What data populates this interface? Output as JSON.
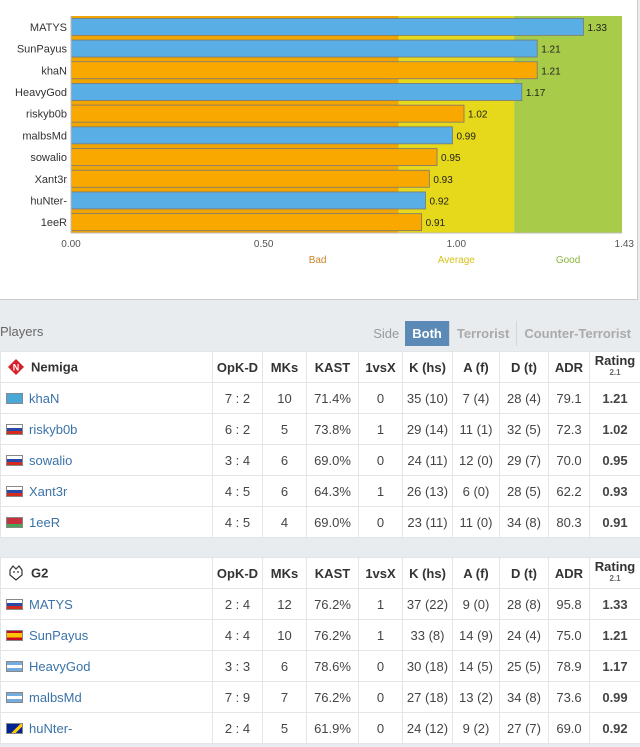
{
  "chart_data": {
    "type": "bar",
    "orientation": "horizontal",
    "categories": [
      "MATYS",
      "SunPayus",
      "khaN",
      "HeavyGod",
      "riskyb0b",
      "malbsMd",
      "sowalio",
      "Xant3r",
      "huNter-",
      "1eeR"
    ],
    "values": [
      1.33,
      1.21,
      1.21,
      1.17,
      1.02,
      0.99,
      0.95,
      0.93,
      0.92,
      0.91
    ],
    "value_labels": [
      "1.33",
      "1.21",
      "1.21",
      "1.17",
      "1.02",
      "0.99",
      "0.95",
      "0.93",
      "0.92",
      "0.91"
    ],
    "bar_teams": [
      "g2",
      "g2",
      "nemiga",
      "g2",
      "nemiga",
      "g2",
      "nemiga",
      "nemiga",
      "g2",
      "nemiga"
    ],
    "xlim": [
      0,
      1.43
    ],
    "ticks": [
      0.0,
      0.5,
      1.0,
      1.43
    ],
    "tick_labels": [
      "0.00",
      "0.50",
      "1.00",
      "1.43"
    ],
    "zones": [
      {
        "label": "Bad",
        "from": 0.0,
        "to": 0.85,
        "color": "#f0a500"
      },
      {
        "label": "Average",
        "from": 0.85,
        "to": 1.15,
        "color": "#e6d81a"
      },
      {
        "label": "Good",
        "from": 1.15,
        "to": 1.43,
        "color": "#a8cc4a"
      }
    ],
    "zone_text_colors": {
      "Bad": "#c8842a",
      "Average": "#d6c21a",
      "Good": "#8ab53a"
    },
    "colors": {
      "g2": "#5aaee6",
      "nemiga": "#f9a800"
    },
    "grid": false
  },
  "players_section": {
    "title": "Players",
    "side_label": "Side",
    "tabs": [
      "Both",
      "Terrorist",
      "Counter-Terrorist"
    ],
    "active_tab": "Both"
  },
  "columns": [
    "OpK-D",
    "MKs",
    "KAST",
    "1vsX",
    "K (hs)",
    "A (f)",
    "D (t)",
    "ADR",
    "Rating"
  ],
  "rating_sub": "2.1",
  "teams": [
    {
      "name": "Nemiga",
      "logo": "nemiga-logo-icon",
      "players": [
        {
          "name": "khaN",
          "flag": "kz",
          "opkd": "7 : 2",
          "mks": "10",
          "kast": "71.4%",
          "vsx": "0",
          "khs": "35 (10)",
          "af": "7 (4)",
          "dt": "28 (4)",
          "adr": "79.1",
          "rating": "1.21",
          "rclass": "r-good"
        },
        {
          "name": "riskyb0b",
          "flag": "ru",
          "opkd": "6 : 2",
          "mks": "5",
          "kast": "73.8%",
          "vsx": "1",
          "khs": "29 (14)",
          "af": "11 (1)",
          "dt": "32 (5)",
          "adr": "72.3",
          "rating": "1.02",
          "rclass": "r-mid"
        },
        {
          "name": "sowalio",
          "flag": "ru",
          "opkd": "3 : 4",
          "mks": "6",
          "kast": "69.0%",
          "vsx": "0",
          "khs": "24 (11)",
          "af": "12 (0)",
          "dt": "29 (7)",
          "adr": "70.0",
          "rating": "0.95",
          "rclass": "r-bad"
        },
        {
          "name": "Xant3r",
          "flag": "ru",
          "opkd": "4 : 5",
          "mks": "6",
          "kast": "64.3%",
          "vsx": "1",
          "khs": "26 (13)",
          "af": "6 (0)",
          "dt": "28 (5)",
          "adr": "62.2",
          "rating": "0.93",
          "rclass": "r-bad"
        },
        {
          "name": "1eeR",
          "flag": "by",
          "opkd": "4 : 5",
          "mks": "4",
          "kast": "69.0%",
          "vsx": "0",
          "khs": "23 (11)",
          "af": "11 (0)",
          "dt": "34 (8)",
          "adr": "80.3",
          "rating": "0.91",
          "rclass": "r-bad"
        }
      ]
    },
    {
      "name": "G2",
      "logo": "g2-logo-icon",
      "players": [
        {
          "name": "MATYS",
          "flag": "sk",
          "opkd": "2 : 4",
          "mks": "12",
          "kast": "76.2%",
          "vsx": "1",
          "khs": "37 (22)",
          "af": "9 (0)",
          "dt": "28 (8)",
          "adr": "95.8",
          "rating": "1.33",
          "rclass": "r-good"
        },
        {
          "name": "SunPayus",
          "flag": "es",
          "opkd": "4 : 4",
          "mks": "10",
          "kast": "76.2%",
          "vsx": "1",
          "khs": "33 (8)",
          "af": "14 (9)",
          "dt": "24 (4)",
          "adr": "75.0",
          "rating": "1.21",
          "rclass": "r-good"
        },
        {
          "name": "HeavyGod",
          "flag": "ar",
          "opkd": "3 : 3",
          "mks": "6",
          "kast": "78.6%",
          "vsx": "0",
          "khs": "30 (18)",
          "af": "14 (5)",
          "dt": "25 (5)",
          "adr": "78.9",
          "rating": "1.17",
          "rclass": "r-good"
        },
        {
          "name": "malbsMd",
          "flag": "ar",
          "opkd": "7 : 9",
          "mks": "7",
          "kast": "76.2%",
          "vsx": "0",
          "khs": "27 (18)",
          "af": "13 (2)",
          "dt": "34 (8)",
          "adr": "73.6",
          "rating": "0.99",
          "rclass": "r-mid"
        },
        {
          "name": "huNter-",
          "flag": "ba",
          "opkd": "2 : 4",
          "mks": "5",
          "kast": "61.9%",
          "vsx": "0",
          "khs": "24 (12)",
          "af": "9 (2)",
          "dt": "27 (7)",
          "adr": "69.0",
          "rating": "0.92",
          "rclass": "r-bad"
        }
      ]
    }
  ]
}
